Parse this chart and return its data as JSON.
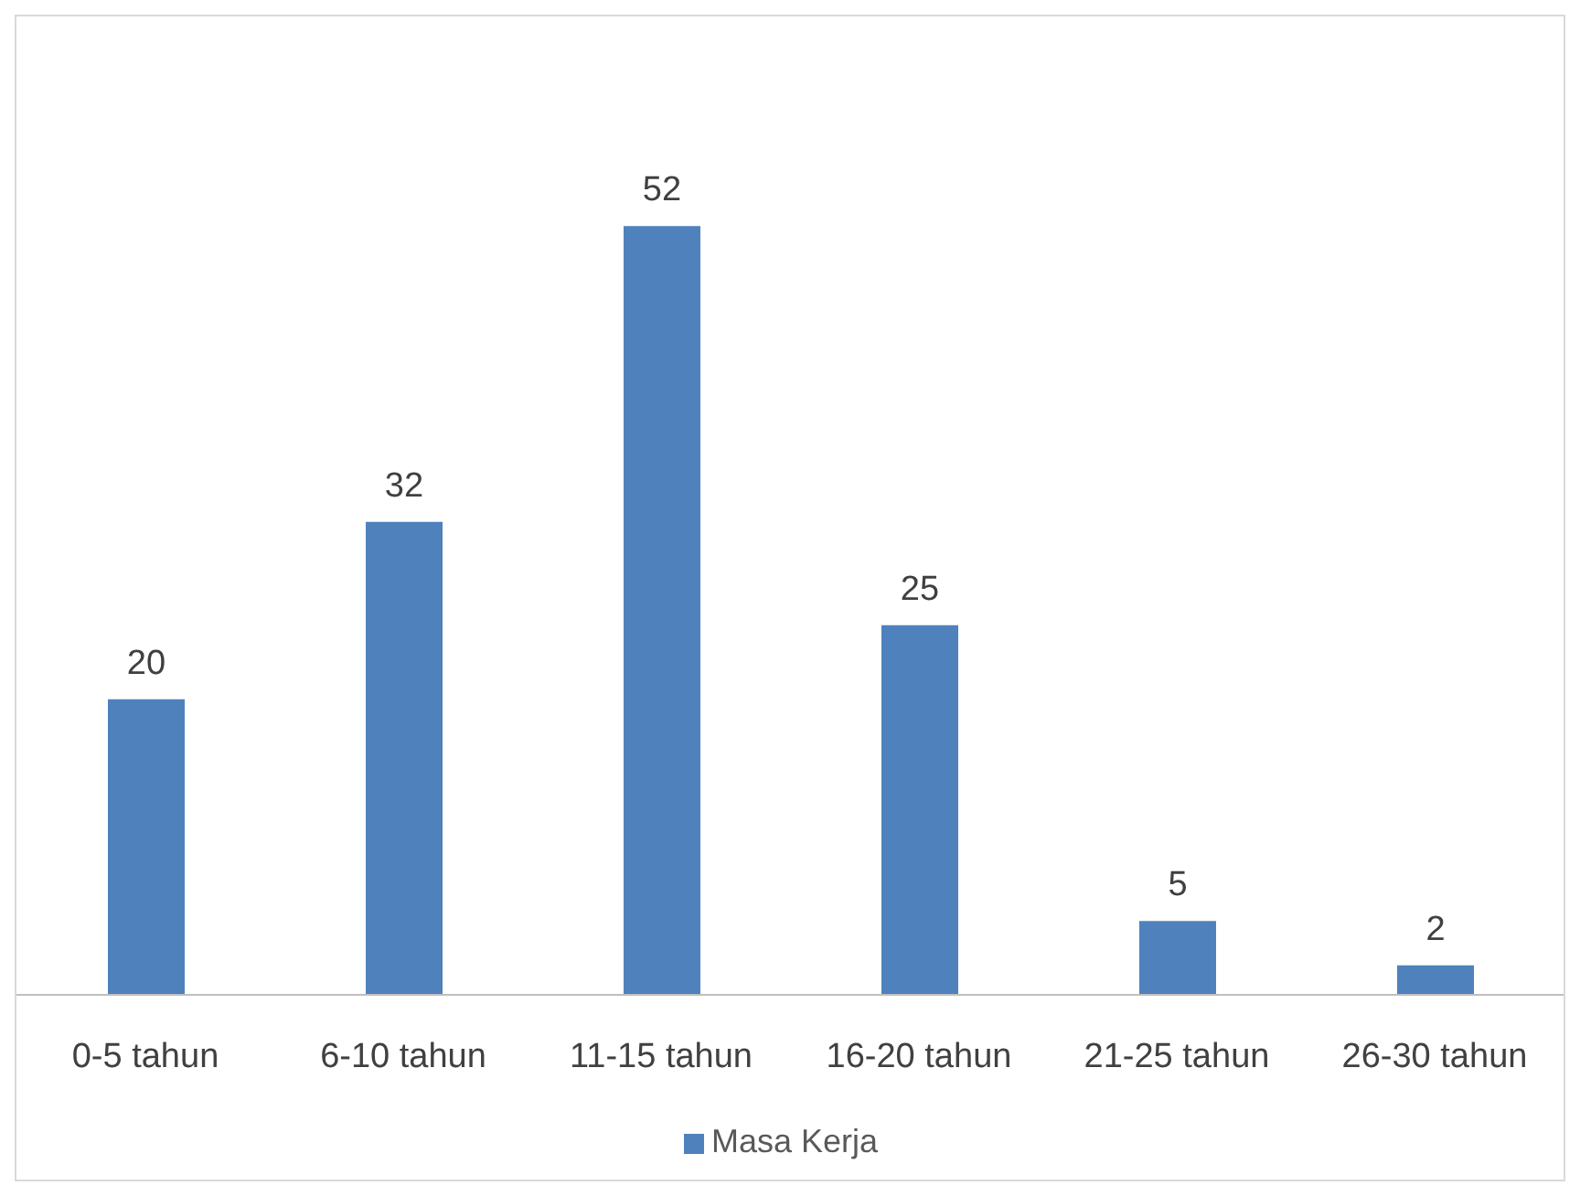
{
  "chart_data": {
    "type": "bar",
    "categories": [
      "0-5 tahun",
      "6-10 tahun",
      "11-15 tahun",
      "16-20 tahun",
      "21-25 tahun",
      "26-30 tahun"
    ],
    "series": [
      {
        "name": "Masa Kerja",
        "color": "#4f81bd",
        "values": [
          20,
          32,
          52,
          25,
          5,
          2
        ]
      }
    ],
    "data_labels": true,
    "legend": "bottom",
    "grid": false
  }
}
